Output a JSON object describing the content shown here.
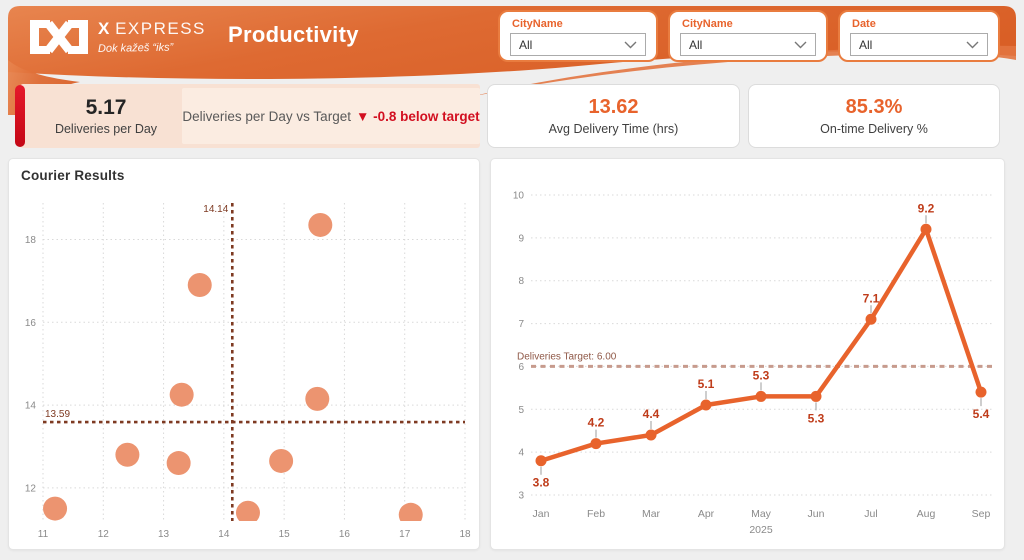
{
  "header": {
    "brand_name_bold": "X",
    "brand_name_rest": "EXPRESS",
    "brand_tagline": "Dok kažeš “iks”",
    "title": "Productivity",
    "filters": [
      {
        "label": "CityName",
        "value": "All"
      },
      {
        "label": "CityName",
        "value": "All"
      },
      {
        "label": "Date",
        "value": "All"
      }
    ]
  },
  "kpis": {
    "deliveries_per_day": {
      "value": "5.17",
      "label": "Deliveries per Day"
    },
    "vs_target": {
      "text": "Deliveries per Day vs Target",
      "delta": "▼ -0.8 below target"
    },
    "avg_delivery_time": {
      "value": "13.62",
      "label": "Avg Delivery Time (hrs)"
    },
    "on_time_delivery": {
      "value": "85.3%",
      "label": "On-time Delivery %"
    }
  },
  "colors": {
    "header_orange": "#DC6228",
    "accent_orange": "#E8632C",
    "kpi_red": "#D20F20",
    "peach": "#F8E1D3",
    "grid_gray": "#d9d9d9",
    "axis_text": "#8a8a8a"
  },
  "chart_data": [
    {
      "type": "scatter",
      "title": "Courier Results",
      "xlabel": "",
      "ylabel": "",
      "xlim": [
        11,
        18
      ],
      "ylim": [
        11.2,
        18.88
      ],
      "x_ticks": [
        11,
        12,
        13,
        14,
        15,
        16,
        17,
        18
      ],
      "y_ticks": [
        12,
        14,
        16,
        18
      ],
      "grid": true,
      "ref_line_x": {
        "value": 14.14,
        "label": "14.14"
      },
      "ref_line_y": {
        "value": 13.59,
        "label": "13.59"
      },
      "points": [
        {
          "x": 11.2,
          "y": 11.5
        },
        {
          "x": 12.4,
          "y": 12.8
        },
        {
          "x": 13.25,
          "y": 12.6
        },
        {
          "x": 13.3,
          "y": 14.25
        },
        {
          "x": 13.6,
          "y": 16.9
        },
        {
          "x": 15.6,
          "y": 18.35
        },
        {
          "x": 15.55,
          "y": 14.15
        },
        {
          "x": 14.95,
          "y": 12.65
        },
        {
          "x": 14.4,
          "y": 11.4
        },
        {
          "x": 17.1,
          "y": 11.35
        }
      ],
      "bubble_color": "#EC9470",
      "ref_color": "#7E3A22"
    },
    {
      "type": "line",
      "categories": [
        "Jan",
        "Feb",
        "Mar",
        "Apr",
        "May",
        "Jun",
        "Jul",
        "Aug",
        "Sep"
      ],
      "year_label": {
        "text": "2025",
        "under": "May"
      },
      "values": [
        3.8,
        4.2,
        4.4,
        5.1,
        5.3,
        5.3,
        7.1,
        9.2,
        5.4
      ],
      "label_positions": [
        "below",
        "above",
        "above",
        "above",
        "above",
        "below",
        "above",
        "above",
        "below"
      ],
      "target": {
        "value": 6.0,
        "label": "Deliveries Target: 6.00"
      },
      "ylim": [
        3,
        10
      ],
      "y_ticks": [
        3,
        4,
        5,
        6,
        7,
        8,
        9,
        10
      ],
      "grid": true,
      "legend": "none",
      "line_color": "#E8632C",
      "point_color": "#E8632C",
      "label_color": "#BF3C1A",
      "target_color": "#C79B8D",
      "target_label_color": "#8F5847"
    }
  ]
}
